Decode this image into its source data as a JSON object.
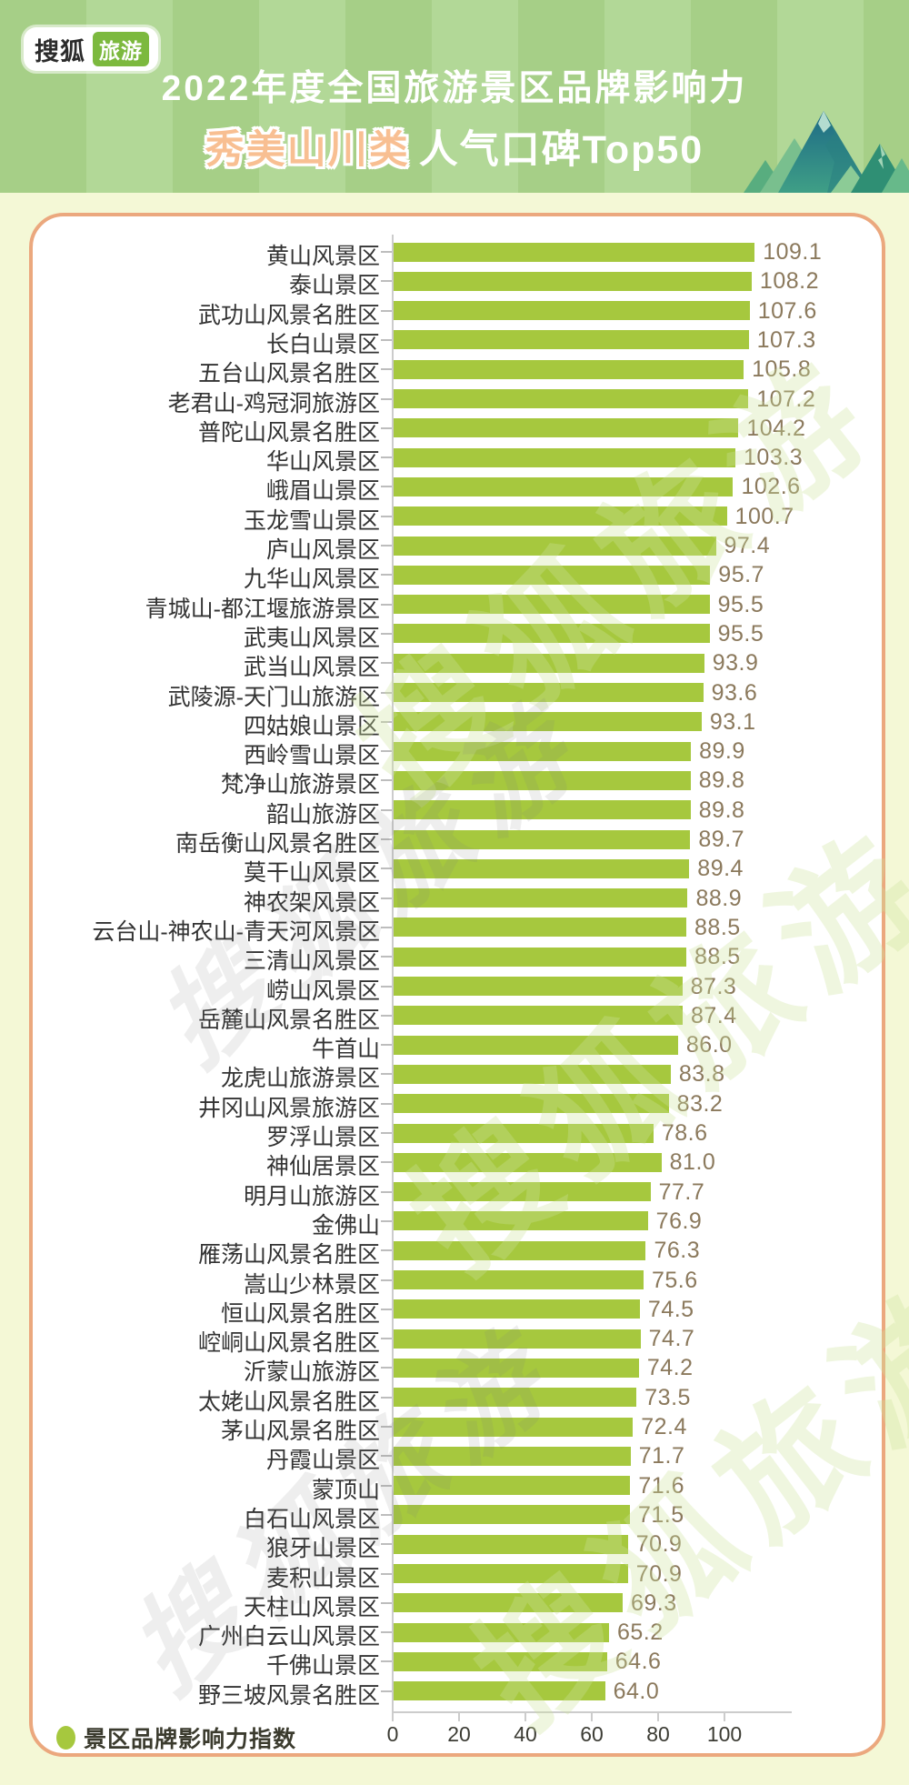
{
  "header": {
    "logo_brand": "搜狐",
    "logo_sub": "旅游",
    "title_line1": "2022年度全国旅游景区品牌影响力",
    "title_line2_highlight": "秀美山川类",
    "title_line2_rest": "人气口碑Top50"
  },
  "watermark": {
    "text": "搜狐旅游"
  },
  "legend": {
    "label": "景区品牌影响力指数"
  },
  "chart_data": {
    "type": "bar",
    "orientation": "horizontal",
    "title": "2022年度全国旅游景区品牌影响力 秀美山川类 人气口碑Top50",
    "bar_color": "#a6c83e",
    "label_color": "#333333",
    "value_color": "#8b795c",
    "grid": false,
    "legend_position": "bottom-left",
    "x_ticks": [
      0,
      20,
      40,
      60,
      80,
      100
    ],
    "xlim": [
      0,
      119
    ],
    "categories": [
      "黄山风景区",
      "泰山景区",
      "武功山风景名胜区",
      "长白山景区",
      "五台山风景名胜区",
      "老君山-鸡冠洞旅游区",
      "普陀山风景名胜区",
      "华山风景区",
      "峨眉山景区",
      "玉龙雪山景区",
      "庐山风景区",
      "九华山风景区",
      "青城山-都江堰旅游景区",
      "武夷山风景区",
      "武当山风景区",
      "武陵源-天门山旅游区",
      "四姑娘山景区",
      "西岭雪山景区",
      "梵净山旅游景区",
      "韶山旅游区",
      "南岳衡山风景名胜区",
      "莫干山风景区",
      "神农架风景区",
      "云台山-神农山-青天河风景区",
      "三清山风景区",
      "崂山风景区",
      "岳麓山风景名胜区",
      "牛首山",
      "龙虎山旅游景区",
      "井冈山风景旅游区",
      "罗浮山景区",
      "神仙居景区",
      "明月山旅游区",
      "金佛山",
      "雁荡山风景名胜区",
      "嵩山少林景区",
      "恒山风景名胜区",
      "崆峒山风景名胜区",
      "沂蒙山旅游区",
      "太姥山风景名胜区",
      "茅山风景名胜区",
      "丹霞山景区",
      "蒙顶山",
      "白石山风景区",
      "狼牙山景区",
      "麦积山景区",
      "天柱山风景区",
      "广州白云山风景区",
      "千佛山景区",
      "野三坡风景名胜区"
    ],
    "values": [
      109.1,
      108.2,
      107.6,
      107.3,
      105.8,
      107.2,
      104.2,
      103.3,
      102.6,
      100.7,
      97.4,
      95.7,
      95.5,
      95.5,
      93.9,
      93.6,
      93.1,
      89.9,
      89.8,
      89.8,
      89.7,
      89.4,
      88.9,
      88.5,
      88.5,
      87.3,
      87.4,
      86.0,
      83.8,
      83.2,
      78.6,
      81.0,
      77.7,
      76.9,
      76.3,
      75.6,
      74.5,
      74.7,
      74.2,
      73.5,
      72.4,
      71.7,
      71.6,
      71.5,
      70.9,
      70.9,
      69.3,
      65.2,
      64.6,
      64.0
    ]
  }
}
